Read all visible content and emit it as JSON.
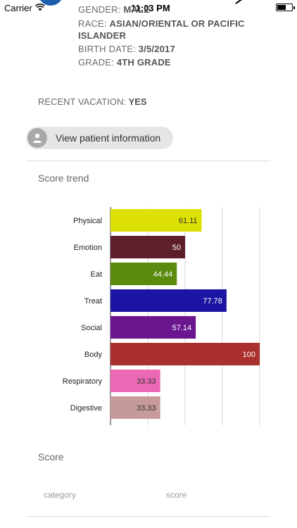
{
  "status": {
    "carrier": "Carrier",
    "time": "11:03 PM"
  },
  "patient": {
    "gender_label": "GENDER:",
    "gender_value": "MALE",
    "race_label": "RACE:",
    "race_value_1": "ASIAN/ORIENTAL OR PACIFIC",
    "race_value_2": "ISLANDER",
    "birth_label": "BIRTH DATE:",
    "birth_value": "3/5/2017",
    "grade_label": "GRADE:",
    "grade_value": "4TH GRADE",
    "vacation_label": "RECENT VACATION:",
    "vacation_value": "YES"
  },
  "view_patient_label": "View patient information",
  "score_trend_title": "Score trend",
  "score_title": "Score",
  "table": {
    "col_category": "category",
    "col_score": "score"
  },
  "colors": {
    "brand_blue": "#1c5fae"
  },
  "chart_data": {
    "type": "bar",
    "orientation": "horizontal",
    "categories": [
      "Physical",
      "Emotion",
      "Eat",
      "Treat",
      "Social",
      "Body",
      "Respiratory",
      "Digestive"
    ],
    "values": [
      61.11,
      50,
      44.44,
      77.78,
      57.14,
      100,
      33.33,
      33.33
    ],
    "labels": [
      "61.11",
      "50",
      "44.44",
      "77.78",
      "57.14",
      "100",
      "33.33",
      "33.33"
    ],
    "colors": [
      "#dde003",
      "#5d1f2b",
      "#5a8a0e",
      "#1c14a3",
      "#6a168f",
      "#a9302c",
      "#ec68b5",
      "#c79a9a"
    ],
    "label_colors": [
      "#333333",
      "#ffffff",
      "#ffffff",
      "#ffffff",
      "#ffffff",
      "#ffffff",
      "#333333",
      "#333333"
    ],
    "xlim": [
      0,
      100
    ],
    "grid": true
  }
}
